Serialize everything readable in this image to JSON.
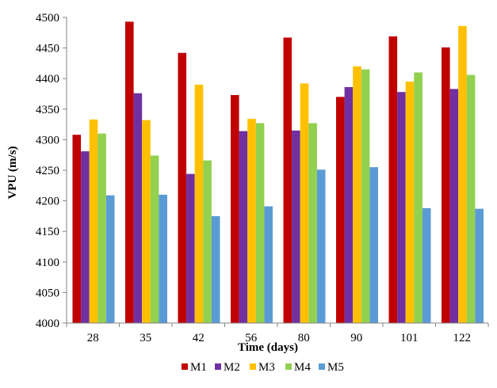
{
  "chart_data": {
    "type": "bar",
    "title": "",
    "xlabel": "Time (days)",
    "ylabel": "VPU (m/s)",
    "ylim": [
      4000,
      4500
    ],
    "ytick_step": 50,
    "grid": false,
    "legend_position": "bottom",
    "categories": [
      "28",
      "35",
      "42",
      "56",
      "80",
      "90",
      "101",
      "122"
    ],
    "series": [
      {
        "name": "M1",
        "color": "#c00000",
        "values": [
          4308,
          4493,
          4442,
          4373,
          4467,
          4370,
          4469,
          4451
        ]
      },
      {
        "name": "M2",
        "color": "#7030a0",
        "values": [
          4281,
          4376,
          4244,
          4314,
          4315,
          4386,
          4378,
          4383
        ]
      },
      {
        "name": "M3",
        "color": "#ffc000",
        "values": [
          4333,
          4332,
          4390,
          4334,
          4392,
          4420,
          4395,
          4486
        ]
      },
      {
        "name": "M4",
        "color": "#92d050",
        "values": [
          4310,
          4274,
          4266,
          4327,
          4327,
          4415,
          4410,
          4406
        ]
      },
      {
        "name": "M5",
        "color": "#5b9bd5",
        "values": [
          4209,
          4210,
          4175,
          4191,
          4251,
          4255,
          4188,
          4187
        ]
      }
    ]
  }
}
